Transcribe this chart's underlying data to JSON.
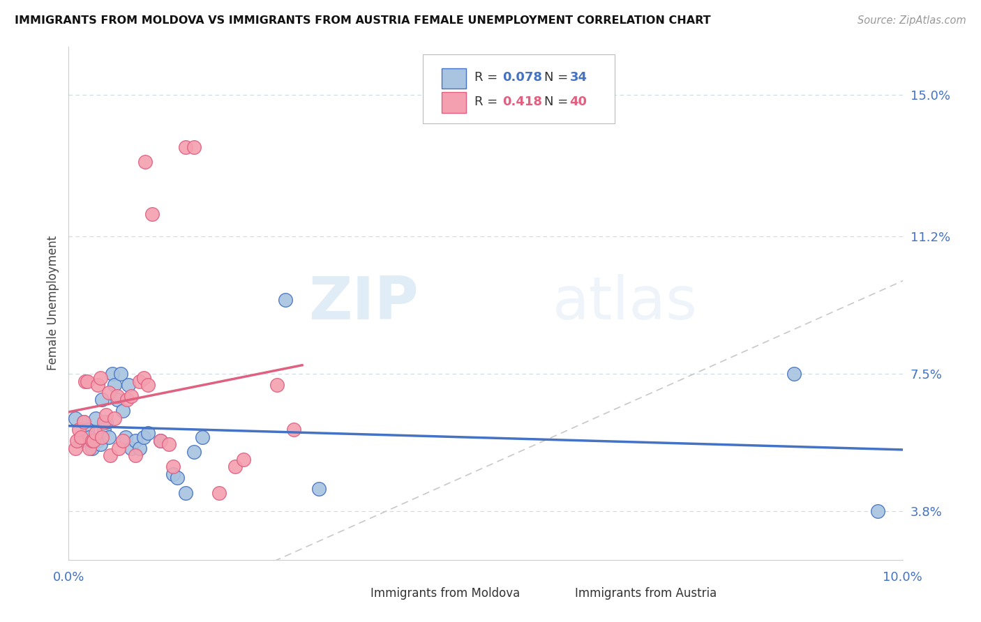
{
  "title": "IMMIGRANTS FROM MOLDOVA VS IMMIGRANTS FROM AUSTRIA FEMALE UNEMPLOYMENT CORRELATION CHART",
  "source": "Source: ZipAtlas.com",
  "ylabel": "Female Unemployment",
  "xlim": [
    0.0,
    0.1
  ],
  "ylim": [
    0.025,
    0.163
  ],
  "yticks": [
    0.038,
    0.075,
    0.112,
    0.15
  ],
  "ytick_labels": [
    "3.8%",
    "7.5%",
    "11.2%",
    "15.0%"
  ],
  "xticks": [
    0.0,
    0.02,
    0.04,
    0.06,
    0.08,
    0.1
  ],
  "xtick_labels": [
    "0.0%",
    "",
    "",
    "",
    "",
    "10.0%"
  ],
  "color_moldova": "#a8c4e0",
  "color_austria": "#f4a0b0",
  "color_moldova_line": "#4472c4",
  "color_austria_line": "#e06080",
  "color_diagonal": "#c8c8c8",
  "watermark_zip": "ZIP",
  "watermark_atlas": "atlas",
  "moldova_points": [
    [
      0.0008,
      0.063
    ],
    [
      0.0015,
      0.057
    ],
    [
      0.0018,
      0.062
    ],
    [
      0.0022,
      0.06
    ],
    [
      0.0025,
      0.058
    ],
    [
      0.0028,
      0.055
    ],
    [
      0.0032,
      0.063
    ],
    [
      0.0035,
      0.057
    ],
    [
      0.0038,
      0.056
    ],
    [
      0.004,
      0.068
    ],
    [
      0.0042,
      0.06
    ],
    [
      0.0045,
      0.062
    ],
    [
      0.0048,
      0.058
    ],
    [
      0.0052,
      0.075
    ],
    [
      0.0055,
      0.072
    ],
    [
      0.0058,
      0.068
    ],
    [
      0.0062,
      0.075
    ],
    [
      0.0065,
      0.065
    ],
    [
      0.0068,
      0.058
    ],
    [
      0.0072,
      0.072
    ],
    [
      0.0075,
      0.055
    ],
    [
      0.008,
      0.057
    ],
    [
      0.0085,
      0.055
    ],
    [
      0.009,
      0.058
    ],
    [
      0.0095,
      0.059
    ],
    [
      0.011,
      0.057
    ],
    [
      0.0125,
      0.048
    ],
    [
      0.013,
      0.047
    ],
    [
      0.014,
      0.043
    ],
    [
      0.015,
      0.054
    ],
    [
      0.016,
      0.058
    ],
    [
      0.026,
      0.095
    ],
    [
      0.03,
      0.044
    ],
    [
      0.087,
      0.075
    ],
    [
      0.097,
      0.038
    ]
  ],
  "austria_points": [
    [
      0.0008,
      0.055
    ],
    [
      0.001,
      0.057
    ],
    [
      0.0012,
      0.06
    ],
    [
      0.0015,
      0.058
    ],
    [
      0.0018,
      0.062
    ],
    [
      0.002,
      0.073
    ],
    [
      0.0022,
      0.073
    ],
    [
      0.0025,
      0.055
    ],
    [
      0.0028,
      0.057
    ],
    [
      0.003,
      0.057
    ],
    [
      0.0032,
      0.059
    ],
    [
      0.0035,
      0.072
    ],
    [
      0.0038,
      0.074
    ],
    [
      0.004,
      0.058
    ],
    [
      0.0042,
      0.062
    ],
    [
      0.0045,
      0.064
    ],
    [
      0.0048,
      0.07
    ],
    [
      0.005,
      0.053
    ],
    [
      0.0055,
      0.063
    ],
    [
      0.0058,
      0.069
    ],
    [
      0.006,
      0.055
    ],
    [
      0.0065,
      0.057
    ],
    [
      0.007,
      0.068
    ],
    [
      0.0075,
      0.069
    ],
    [
      0.008,
      0.053
    ],
    [
      0.0085,
      0.073
    ],
    [
      0.009,
      0.074
    ],
    [
      0.0092,
      0.132
    ],
    [
      0.0095,
      0.072
    ],
    [
      0.01,
      0.118
    ],
    [
      0.011,
      0.057
    ],
    [
      0.012,
      0.056
    ],
    [
      0.0125,
      0.05
    ],
    [
      0.014,
      0.136
    ],
    [
      0.015,
      0.136
    ],
    [
      0.018,
      0.043
    ],
    [
      0.02,
      0.05
    ],
    [
      0.021,
      0.052
    ],
    [
      0.025,
      0.072
    ],
    [
      0.027,
      0.06
    ]
  ]
}
